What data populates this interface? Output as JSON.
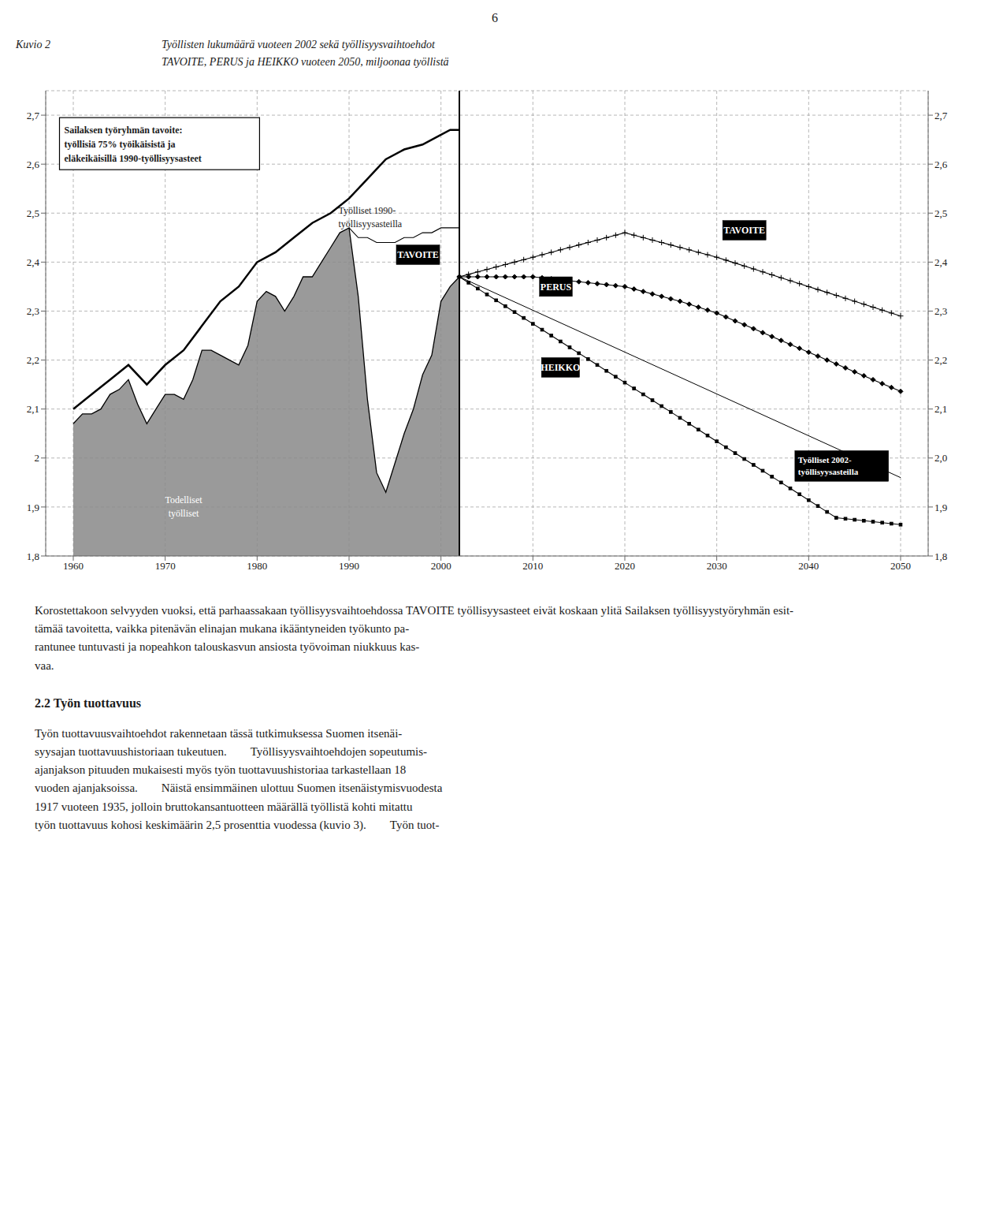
{
  "page_number": "6",
  "chart_data": {
    "type": "line",
    "title": "Kuvio 2",
    "subtitle": "Työllisten lukumäärä vuoteen 2002 sekä työllisyysvaihtoehdot\nTAVOITE, PERUS ja HEIKKO vuoteen 2050, miljoonaa työllistä",
    "xlim": [
      1957,
      2053
    ],
    "xticks": [
      1960,
      1970,
      1980,
      1990,
      2000,
      2010,
      2020,
      2030,
      2040,
      2050
    ],
    "ylim": [
      1.8,
      2.75
    ],
    "yticks": [
      {
        "value": 1.8,
        "label": "1,8"
      },
      {
        "value": 1.9,
        "label": "1,9"
      },
      2,
      {
        "value": 2.1,
        "label": "2,1"
      },
      {
        "value": 2.2,
        "label": "2,2"
      },
      {
        "value": 2.3,
        "label": "2,3"
      },
      {
        "value": 2.4,
        "label": "2,4"
      },
      {
        "value": 2.5,
        "label": "2,5"
      },
      {
        "value": 2.6,
        "label": "2,6"
      },
      {
        "value": 2.7,
        "label": "2,7"
      }
    ],
    "y2lim": [
      1.8,
      2.75
    ],
    "y2ticks": [
      {
        "value": 1.8,
        "label": "1,8"
      },
      {
        "value": 1.9,
        "label": "1,9"
      },
      {
        "value": 2.0,
        "label": "2,0"
      },
      {
        "value": 2.1,
        "label": "2,1"
      },
      {
        "value": 2.2,
        "label": "2,2"
      },
      {
        "value": 2.3,
        "label": "2,3"
      },
      {
        "value": 2.4,
        "label": "2,4"
      },
      {
        "value": 2.5,
        "label": "2,5"
      },
      {
        "value": 2.6,
        "label": "2,6"
      },
      {
        "value": 2.7,
        "label": "2,7"
      }
    ],
    "grid": true,
    "vline": 2002,
    "series": [
      {
        "type": "area",
        "color": "#888888",
        "x": [
          1960,
          1961,
          1962,
          1963,
          1964,
          1965,
          1966,
          1967,
          1968,
          1969,
          1970,
          1971,
          1972,
          1973,
          1974,
          1975,
          1976,
          1977,
          1978,
          1979,
          1980,
          1981,
          1982,
          1983,
          1984,
          1985,
          1986,
          1987,
          1988,
          1989,
          1990,
          1991,
          1992,
          1993,
          1994,
          1995,
          1996,
          1997,
          1998,
          1999,
          2000,
          2001,
          2002
        ],
        "values": [
          2.07,
          2.09,
          2.09,
          2.1,
          2.13,
          2.14,
          2.16,
          2.11,
          2.07,
          2.1,
          2.13,
          2.13,
          2.12,
          2.16,
          2.22,
          2.22,
          2.21,
          2.2,
          2.19,
          2.23,
          2.32,
          2.34,
          2.33,
          2.3,
          2.33,
          2.37,
          2.37,
          2.4,
          2.43,
          2.46,
          2.47,
          2.33,
          2.12,
          1.97,
          1.93,
          1.99,
          2.05,
          2.1,
          2.17,
          2.21,
          2.32,
          2.35,
          2.37
        ]
      },
      {
        "type": "line",
        "color": "black",
        "x": [
          1960,
          1962,
          1964,
          1966,
          1968,
          1970,
          1972,
          1974,
          1976,
          1978,
          1980,
          1982,
          1984,
          1986,
          1988,
          1990,
          1992,
          1993,
          1994,
          1996,
          1998,
          2000,
          2001,
          2002
        ],
        "values": [
          2.1,
          2.13,
          2.16,
          2.19,
          2.15,
          2.19,
          2.22,
          2.27,
          2.32,
          2.35,
          2.4,
          2.42,
          2.45,
          2.48,
          2.5,
          2.53,
          2.57,
          2.59,
          2.61,
          2.63,
          2.64,
          2.66,
          2.67,
          2.67
        ]
      },
      {
        "type": "line",
        "color": "black",
        "x": [
          1990,
          1991,
          1992,
          1993,
          1994,
          1995,
          1996,
          1997,
          1998,
          1999,
          2000,
          2001,
          2002
        ],
        "values": [
          2.47,
          2.45,
          2.45,
          2.44,
          2.44,
          2.44,
          2.45,
          2.45,
          2.46,
          2.46,
          2.47,
          2.47,
          2.47
        ]
      },
      {
        "type": "line",
        "color": "black",
        "marker": "plus",
        "x": [
          2002,
          2003,
          2004,
          2005,
          2006,
          2007,
          2008,
          2009,
          2010,
          2011,
          2012,
          2013,
          2014,
          2015,
          2016,
          2017,
          2018,
          2019,
          2020,
          2021,
          2022,
          2023,
          2024,
          2025,
          2026,
          2027,
          2028,
          2029,
          2030,
          2031,
          2032,
          2033,
          2034,
          2035,
          2036,
          2037,
          2038,
          2039,
          2040,
          2041,
          2042,
          2043,
          2044,
          2045,
          2046,
          2047,
          2048,
          2049,
          2050
        ],
        "values": [
          2.37,
          2.375,
          2.38,
          2.385,
          2.39,
          2.395,
          2.4,
          2.405,
          2.41,
          2.415,
          2.42,
          2.425,
          2.43,
          2.435,
          2.44,
          2.445,
          2.45,
          2.455,
          2.46,
          2.455,
          2.45,
          2.445,
          2.44,
          2.435,
          2.43,
          2.425,
          2.42,
          2.415,
          2.41,
          2.404,
          2.398,
          2.392,
          2.386,
          2.38,
          2.374,
          2.368,
          2.362,
          2.356,
          2.35,
          2.344,
          2.338,
          2.332,
          2.326,
          2.32,
          2.314,
          2.308,
          2.302,
          2.296,
          2.29
        ]
      },
      {
        "type": "line",
        "color": "black",
        "marker": "diamond",
        "x": [
          2002,
          2003,
          2004,
          2005,
          2006,
          2007,
          2008,
          2009,
          2010,
          2011,
          2012,
          2013,
          2014,
          2015,
          2016,
          2017,
          2018,
          2019,
          2020,
          2021,
          2022,
          2023,
          2024,
          2025,
          2026,
          2027,
          2028,
          2029,
          2030,
          2031,
          2032,
          2033,
          2034,
          2035,
          2036,
          2037,
          2038,
          2039,
          2040,
          2041,
          2042,
          2043,
          2044,
          2045,
          2046,
          2047,
          2048,
          2049,
          2050
        ],
        "values": [
          2.37,
          2.37,
          2.37,
          2.37,
          2.37,
          2.37,
          2.37,
          2.37,
          2.37,
          2.368,
          2.366,
          2.364,
          2.362,
          2.36,
          2.358,
          2.356,
          2.354,
          2.352,
          2.35,
          2.345,
          2.34,
          2.335,
          2.33,
          2.325,
          2.32,
          2.314,
          2.308,
          2.302,
          2.296,
          2.288,
          2.28,
          2.272,
          2.264,
          2.256,
          2.248,
          2.24,
          2.232,
          2.224,
          2.216,
          2.208,
          2.2,
          2.192,
          2.184,
          2.176,
          2.168,
          2.16,
          2.152,
          2.144,
          2.136
        ]
      },
      {
        "type": "line",
        "color": "black",
        "marker": "square",
        "x": [
          2002,
          2003,
          2004,
          2005,
          2006,
          2007,
          2008,
          2009,
          2010,
          2011,
          2012,
          2013,
          2014,
          2015,
          2016,
          2017,
          2018,
          2019,
          2020,
          2021,
          2022,
          2023,
          2024,
          2025,
          2026,
          2027,
          2028,
          2029,
          2030,
          2031,
          2032,
          2033,
          2034,
          2035,
          2036,
          2037,
          2038,
          2039,
          2040,
          2041,
          2042,
          2043,
          2044,
          2045,
          2046,
          2047,
          2048,
          2049,
          2050
        ],
        "values": [
          2.37,
          2.358,
          2.346,
          2.334,
          2.322,
          2.31,
          2.298,
          2.286,
          2.274,
          2.262,
          2.25,
          2.238,
          2.226,
          2.214,
          2.202,
          2.19,
          2.178,
          2.166,
          2.154,
          2.142,
          2.13,
          2.118,
          2.106,
          2.094,
          2.082,
          2.07,
          2.058,
          2.046,
          2.034,
          2.022,
          2.01,
          1.998,
          1.986,
          1.974,
          1.962,
          1.95,
          1.938,
          1.926,
          1.914,
          1.902,
          1.89,
          1.878,
          1.876,
          1.874,
          1.872,
          1.87,
          1.868,
          1.866,
          1.864
        ]
      },
      {
        "type": "line",
        "color": "black",
        "x": [
          2002,
          2050
        ],
        "values": [
          2.37,
          1.96
        ]
      }
    ],
    "annotations": [
      "Sailaksen työryhmän tavoite:\ntyöllisiä 75% työikäisistä ja\neläkeikäisillä 1990-työllisyysasteet",
      "Työlliset 1990-\ntyöllisyysasteilla",
      "Todelliset\ntyölliset",
      "TAVOITE",
      "PERUS",
      "HEIKKO",
      "TAVOITE",
      "Työlliset 2002-\ntyöllisyysasteilla"
    ]
  },
  "body_paragraphs": [
    "Korostettakoon selvyyden vuoksi, että parhaassakaan työllisyysvaihtoehdossa TAVOITE työllisyysasteet eivät koskaan ylitä Sailaksen työllisyystyöryhmän esit-\ntämää tavoitetta, vaikka pitenävän elinajan mukana ikääntyneiden työkunto pa-\nrantunee tuntuvasti ja nopeahkon talouskasvun ansiosta työvoiman niukkuus kas-\nvaa."
  ],
  "section_title": "2.2 Työn tuottavuus",
  "section_body": "Työn tuottavuusvaihtoehdot rakennetaan tässä tutkimuksessa Suomen itsenäi-\nsyysajan tuottavuushistoriaan tukeutuen.  Työllisyysvaihtoehdojen sopeutumis-\najanjakson pituuden mukaisesti myös työn tuottavuushistoriaa tarkastellaan 18\nvuoden ajanjaksoissa.  Näistä ensimmäinen ulottuu Suomen itsenäistymisvuodesta\n1917 vuoteen 1935, jolloin bruttokansantuotteen määrällä työllistä kohti mitattu\ntyön tuottavuus kohosi keskimäärin 2,5 prosenttia vuodessa (kuvio 3).  Työn tuot-"
}
